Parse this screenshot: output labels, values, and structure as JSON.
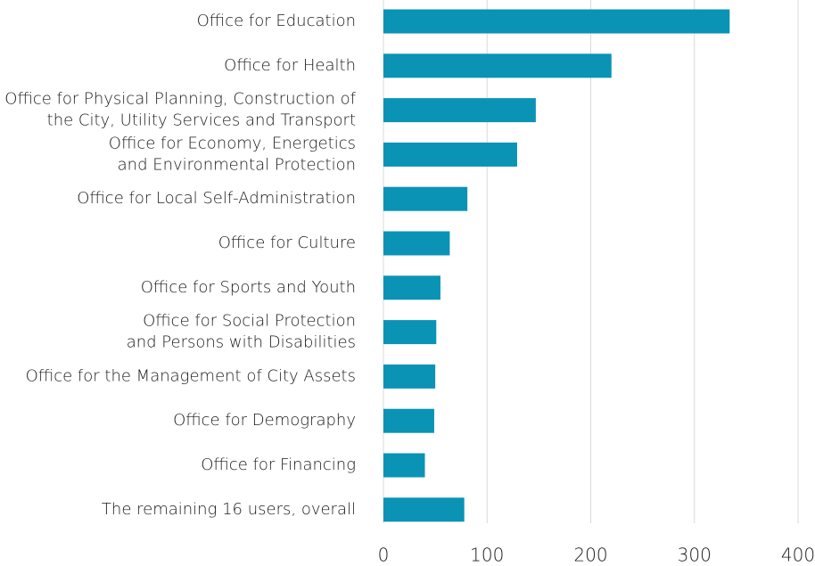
{
  "chart_data": {
    "type": "bar",
    "orientation": "horizontal",
    "categories": [
      "Office for Education",
      "Office for Health",
      "Office for Physical Planning, Construction of\nthe City, Utility Services and Transport",
      "Office for Economy, Energetics\nand Environmental Protection",
      "Office for Local Self-Administration",
      "Office for Culture",
      "Office for Sports and Youth",
      "Office for Social Protection\nand Persons with Disabilities",
      "Office for the Management of City Assets",
      "Office for Demography",
      "Office for Financing",
      "The remaining 16 users, overall"
    ],
    "values": [
      334,
      220,
      147,
      129,
      81,
      64,
      55,
      51,
      50,
      49,
      40,
      78
    ],
    "color": "#0a93b5",
    "xlim": [
      0,
      400
    ],
    "xticks": [
      0,
      100,
      200,
      300,
      400
    ],
    "grid": true
  }
}
